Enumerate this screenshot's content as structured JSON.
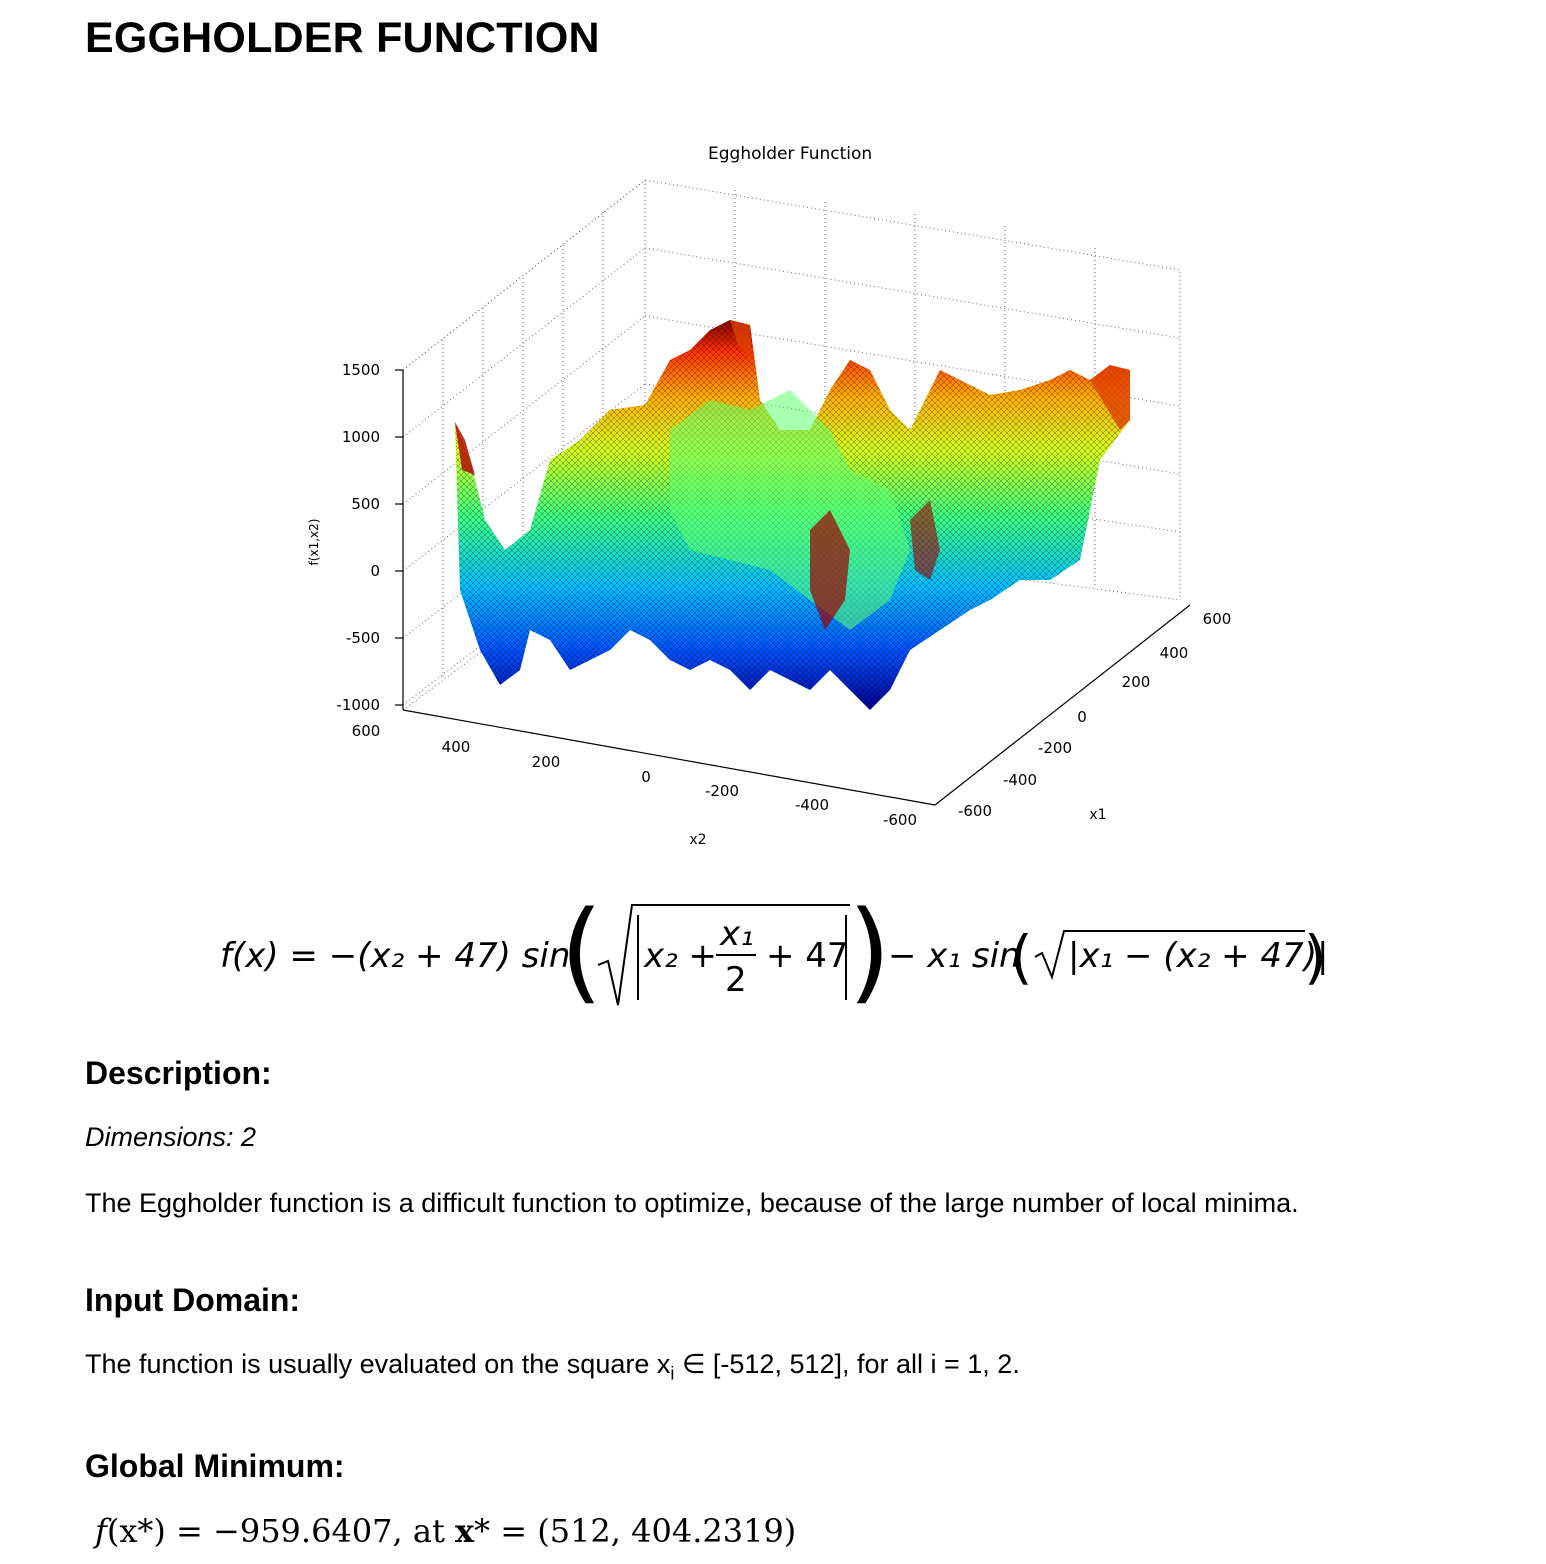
{
  "page": {
    "title": "EGGHOLDER FUNCTION"
  },
  "figure": {
    "title": "Eggholder Function",
    "zlabel": "f(x1,x2)",
    "xlabel": "x2",
    "ylabel": "x1",
    "z_ticks": [
      "1500",
      "1000",
      "500",
      "0",
      "-500",
      "-1000"
    ],
    "x2_ticks": [
      "600",
      "400",
      "200",
      "0",
      "-200",
      "-400",
      "-600"
    ],
    "x1_ticks": [
      "600",
      "400",
      "200",
      "0",
      "-200",
      "-400",
      "-600"
    ],
    "colormap": [
      "#00008f",
      "#0050ff",
      "#00c0ff",
      "#40ff80",
      "#d0ff20",
      "#ffb000",
      "#ff3000",
      "#800000"
    ]
  },
  "formula": {
    "lhs": "f(x) = −(x₂ + 47) sin",
    "inner": "x₂ +",
    "frac_num": "x₁",
    "frac_den": "2",
    "plus47": "+ 47",
    "mid": "− x₁ sin",
    "inner2": "|x₁ − (x₂ + 47)|"
  },
  "description": {
    "heading": "Description:",
    "dimensions": "Dimensions: 2",
    "text": "The Eggholder function is a difficult function to optimize, because of the large number of local minima."
  },
  "input_domain": {
    "heading": "Input Domain:",
    "text_before": "The function is usually evaluated on the square x",
    "subscript": "i",
    "text_after": " ∈ [-512, 512], for all i = 1, 2."
  },
  "global_minimum": {
    "heading": "Global Minimum:",
    "f": "f",
    "x_star": "(x*)",
    "equals_value": " = −959.6407, at ",
    "x": "x",
    "star_eq": "* = (512, 404.2319)"
  }
}
